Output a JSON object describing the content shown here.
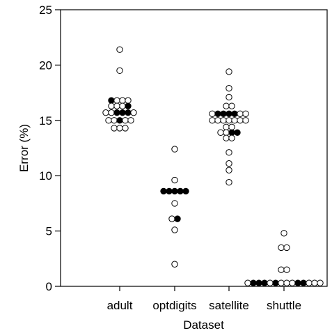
{
  "chart_data": {
    "type": "scatter",
    "title": "",
    "xlabel": "Dataset",
    "ylabel": "Error (%)",
    "ylim": [
      0,
      25
    ],
    "yticks": [
      0,
      5,
      10,
      15,
      20,
      25
    ],
    "grid": false,
    "categories": [
      "adult",
      "optdigits",
      "satellite",
      "shuttle"
    ],
    "colors": {
      "filled": "#000000",
      "open": "#ffffff",
      "stroke": "#000000"
    },
    "series": [
      {
        "category": "adult",
        "points": [
          {
            "y": 21.4,
            "filled": [
              false
            ]
          },
          {
            "y": 19.5,
            "filled": [
              false
            ]
          },
          {
            "y": 16.8,
            "filled": [
              true,
              false,
              false,
              false
            ]
          },
          {
            "y": 16.3,
            "filled": [
              false,
              false,
              false,
              true
            ]
          },
          {
            "y": 15.7,
            "filled": [
              false,
              false,
              true,
              true,
              true,
              false
            ]
          },
          {
            "y": 15.0,
            "filled": [
              false,
              false,
              true,
              false,
              false
            ]
          },
          {
            "y": 14.3,
            "filled": [
              false,
              false,
              false
            ]
          }
        ]
      },
      {
        "category": "optdigits",
        "points": [
          {
            "y": 12.4,
            "filled": [
              false
            ]
          },
          {
            "y": 9.6,
            "filled": [
              false
            ]
          },
          {
            "y": 8.6,
            "filled": [
              true,
              true,
              true,
              true,
              true
            ]
          },
          {
            "y": 7.5,
            "filled": [
              false
            ]
          },
          {
            "y": 6.1,
            "filled": [
              false,
              true
            ]
          },
          {
            "y": 5.1,
            "filled": [
              false
            ]
          },
          {
            "y": 2.0,
            "filled": [
              false
            ]
          }
        ]
      },
      {
        "category": "satellite",
        "points": [
          {
            "y": 19.4,
            "filled": [
              false
            ]
          },
          {
            "y": 17.9,
            "filled": [
              false
            ]
          },
          {
            "y": 17.1,
            "filled": [
              false
            ]
          },
          {
            "y": 16.3,
            "filled": [
              false,
              false
            ]
          },
          {
            "y": 15.6,
            "filled": [
              false,
              true,
              true,
              true,
              true,
              false,
              false
            ]
          },
          {
            "y": 15.0,
            "filled": [
              false,
              false,
              false,
              false,
              false,
              false,
              false
            ]
          },
          {
            "y": 14.4,
            "filled": [
              false,
              false
            ]
          },
          {
            "y": 13.9,
            "filled": [
              false,
              false,
              true,
              true
            ]
          },
          {
            "y": 13.4,
            "filled": [
              false,
              false
            ]
          },
          {
            "y": 12.1,
            "filled": [
              false
            ]
          },
          {
            "y": 11.1,
            "filled": [
              false
            ]
          },
          {
            "y": 10.5,
            "filled": [
              false
            ]
          },
          {
            "y": 9.4,
            "filled": [
              false
            ]
          }
        ]
      },
      {
        "category": "shuttle",
        "points": [
          {
            "y": 4.8,
            "filled": [
              false
            ]
          },
          {
            "y": 3.5,
            "filled": [
              false,
              false
            ]
          },
          {
            "y": 1.5,
            "filled": [
              false,
              false
            ]
          },
          {
            "y": 0.3,
            "filled": [
              false,
              true,
              true,
              true,
              false,
              true,
              false,
              false,
              false,
              true,
              true,
              false,
              false,
              false
            ]
          }
        ]
      }
    ]
  }
}
